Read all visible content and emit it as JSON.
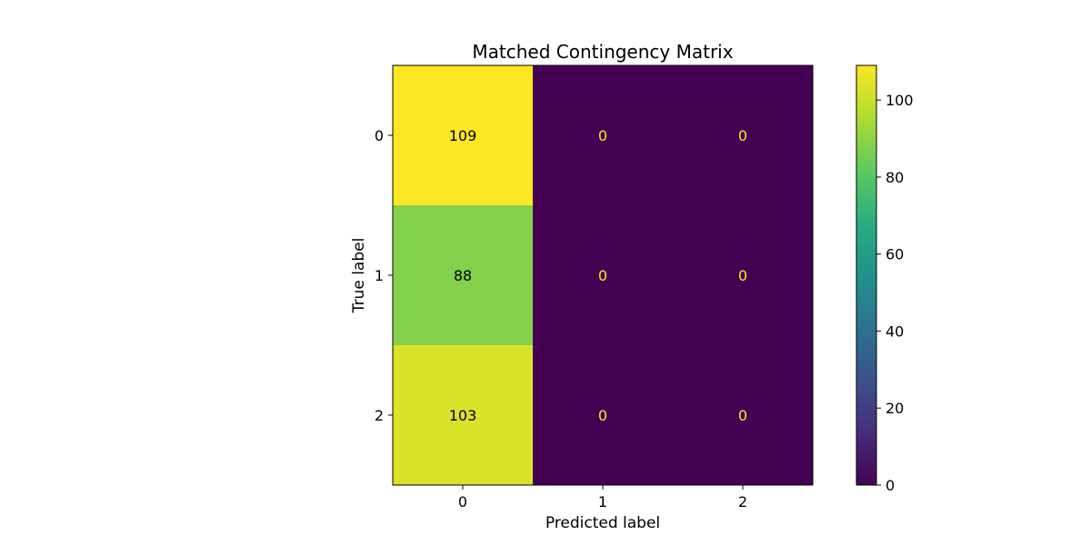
{
  "chart_data": {
    "type": "heatmap",
    "title": "Matched Contingency Matrix",
    "xlabel": "Predicted label",
    "ylabel": "True label",
    "x_categories": [
      "0",
      "1",
      "2"
    ],
    "y_categories": [
      "0",
      "1",
      "2"
    ],
    "values": [
      [
        109,
        0,
        0
      ],
      [
        88,
        0,
        0
      ],
      [
        103,
        0,
        0
      ]
    ],
    "colormap": "viridis",
    "vmin": 0,
    "vmax": 109,
    "colorbar_ticks": [
      0,
      20,
      40,
      60,
      80,
      100
    ],
    "cell_label_colors": {
      "on_dark": "#fde725",
      "on_light": "#000000"
    },
    "grid": false
  }
}
